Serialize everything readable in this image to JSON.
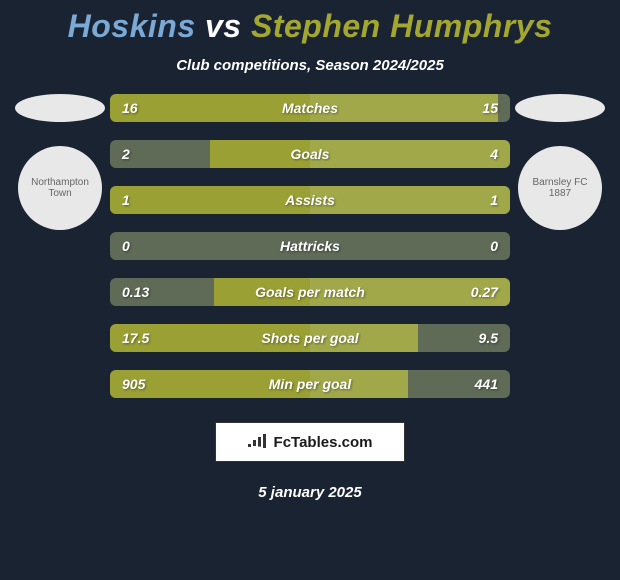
{
  "title": {
    "player1": "Hoskins",
    "vs": "vs",
    "player2": "Stephen Humphrys",
    "player1_color": "#7aa9d6",
    "vs_color": "#ffffff",
    "player2_color": "#a4a72f"
  },
  "subtitle": "Club competitions, Season 2024/2025",
  "date": "5 january 2025",
  "logo_text": "FcTables.com",
  "colors": {
    "bg": "#1a2332",
    "bar_track": "#5f6a57",
    "left_bar": "#9aa034",
    "left_bar_alt": "#b0b84a",
    "right_bar": "#a1a84a",
    "text": "#ffffff"
  },
  "crests": {
    "left_label": "Northampton Town",
    "right_label": "Barnsley FC 1887"
  },
  "bars": [
    {
      "label": "Matches",
      "left_val": "16",
      "right_val": "15",
      "left_pct": 100,
      "right_pct": 94
    },
    {
      "label": "Goals",
      "left_val": "2",
      "right_val": "4",
      "left_pct": 50,
      "right_pct": 100
    },
    {
      "label": "Assists",
      "left_val": "1",
      "right_val": "1",
      "left_pct": 100,
      "right_pct": 100
    },
    {
      "label": "Hattricks",
      "left_val": "0",
      "right_val": "0",
      "left_pct": 0,
      "right_pct": 0
    },
    {
      "label": "Goals per match",
      "left_val": "0.13",
      "right_val": "0.27",
      "left_pct": 48,
      "right_pct": 100
    },
    {
      "label": "Shots per goal",
      "left_val": "17.5",
      "right_val": "9.5",
      "left_pct": 100,
      "right_pct": 54
    },
    {
      "label": "Min per goal",
      "left_val": "905",
      "right_val": "441",
      "left_pct": 100,
      "right_pct": 49
    }
  ]
}
